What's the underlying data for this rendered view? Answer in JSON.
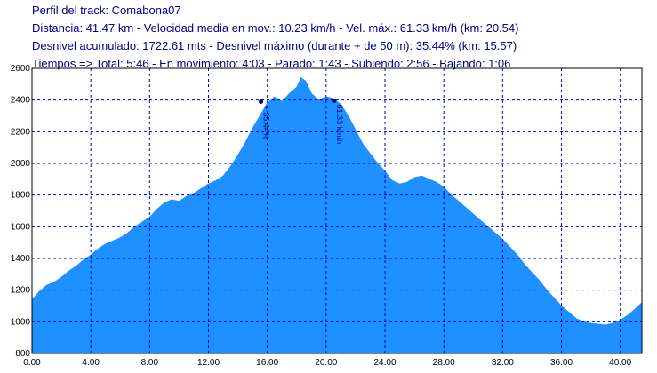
{
  "header": {
    "line1": "Perfil del track: Comabona07",
    "line2": "Distancia: 41.47 km - Velocidad media en mov.: 10.23 km/h - Vel. máx.: 61.33 km/h (km: 20.54)",
    "line3": "Desnivel acumulado: 1722.61 mts - Desnivel máximo (durante + de 50 m): 35.44% (km: 15.57)",
    "line4": "Tiempos => Total: 5:46 - En movimiento: 4:03 - Parado: 1:43 - Subiendo: 2:56 - Bajando: 1:06"
  },
  "colors": {
    "fill": "#1e90ff",
    "grid": "#0000cd",
    "text": "#00008b",
    "marker": "#00008b"
  },
  "chart_data": {
    "type": "area",
    "title": "",
    "xlabel": "",
    "ylabel": "",
    "xlim": [
      0,
      41.47
    ],
    "ylim": [
      800,
      2600
    ],
    "x_ticks": [
      "0.00",
      "4.00",
      "8.00",
      "12.00",
      "16.00",
      "20.00",
      "24.00",
      "28.00",
      "32.00",
      "36.00",
      "40.00"
    ],
    "y_ticks": [
      "800",
      "1000",
      "1200",
      "1400",
      "1600",
      "1800",
      "2000",
      "2200",
      "2400",
      "2600"
    ],
    "grid": true,
    "series": [
      {
        "x": [
          0,
          0.5,
          1,
          1.5,
          2,
          2.5,
          3,
          3.5,
          4,
          4.5,
          5,
          5.5,
          6,
          6.5,
          7,
          7.5,
          8,
          8.5,
          9,
          9.5,
          10,
          10.5,
          11,
          11.5,
          12,
          12.5,
          13,
          13.5,
          14,
          14.5,
          15,
          15.5,
          16,
          16.5,
          17,
          17.5,
          18,
          18.3,
          18.6,
          19,
          19.5,
          20,
          20.5,
          21,
          21.5,
          22,
          22.5,
          23,
          23.5,
          24,
          24.5,
          25,
          25.5,
          26,
          26.5,
          27,
          27.5,
          28,
          28.5,
          29,
          29.5,
          30,
          30.5,
          31,
          31.5,
          32,
          32.5,
          33,
          33.5,
          34,
          34.5,
          35,
          35.5,
          36,
          36.5,
          37,
          37.5,
          38,
          38.5,
          39,
          39.5,
          40,
          40.5,
          41,
          41.47
        ],
        "y": [
          1140,
          1190,
          1230,
          1250,
          1280,
          1320,
          1350,
          1390,
          1420,
          1460,
          1490,
          1510,
          1530,
          1560,
          1600,
          1630,
          1660,
          1710,
          1750,
          1770,
          1760,
          1790,
          1810,
          1840,
          1870,
          1890,
          1920,
          1980,
          2050,
          2130,
          2220,
          2300,
          2380,
          2420,
          2390,
          2440,
          2480,
          2540,
          2520,
          2440,
          2400,
          2420,
          2410,
          2370,
          2300,
          2210,
          2120,
          2060,
          2000,
          1950,
          1890,
          1870,
          1880,
          1910,
          1920,
          1900,
          1880,
          1850,
          1800,
          1760,
          1720,
          1680,
          1640,
          1600,
          1560,
          1520,
          1470,
          1420,
          1360,
          1310,
          1260,
          1200,
          1150,
          1100,
          1060,
          1020,
          1000,
          990,
          985,
          980,
          990,
          1010,
          1040,
          1080,
          1120
        ]
      }
    ],
    "annotations": [
      {
        "x": 15.57,
        "y": 2390,
        "label": "+ 35.44%"
      },
      {
        "x": 20.54,
        "y": 2395,
        "label": "61.33 km/h"
      }
    ]
  }
}
